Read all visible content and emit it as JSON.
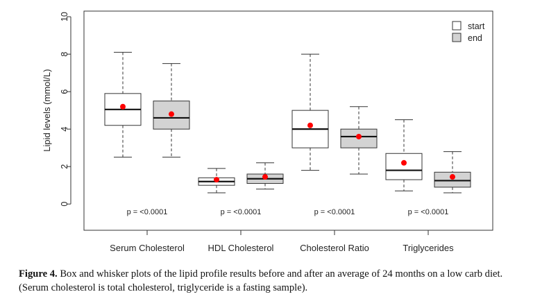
{
  "chart_data": {
    "type": "boxplot",
    "ylabel": "Lipid levels (mmol/L)",
    "ylim": [
      -1.4,
      10.3
    ],
    "yticks": [
      0,
      2,
      4,
      6,
      8,
      10
    ],
    "categories": [
      "Serum Cholesterol",
      "HDL Cholesterol",
      "Cholesterol Ratio",
      "Triglycerides"
    ],
    "legend": {
      "position": "top-right",
      "entries": [
        {
          "label": "start",
          "fill": "#ffffff"
        },
        {
          "label": "end",
          "fill": "#d3d3d3"
        }
      ]
    },
    "groups": [
      {
        "category": "Serum Cholesterol",
        "pvalue": "p = <0.0001",
        "boxes": [
          {
            "series": "start",
            "min": 2.5,
            "q1": 4.2,
            "median": 5.05,
            "q3": 5.9,
            "max": 8.1,
            "mean": 5.2
          },
          {
            "series": "end",
            "min": 2.5,
            "q1": 4.0,
            "median": 4.6,
            "q3": 5.5,
            "max": 7.5,
            "mean": 4.8
          }
        ]
      },
      {
        "category": "HDL Cholesterol",
        "pvalue": "p = <0.0001",
        "boxes": [
          {
            "series": "start",
            "min": 0.6,
            "q1": 1.0,
            "median": 1.2,
            "q3": 1.4,
            "max": 1.9,
            "mean": 1.3
          },
          {
            "series": "end",
            "min": 0.8,
            "q1": 1.1,
            "median": 1.35,
            "q3": 1.6,
            "max": 2.2,
            "mean": 1.45
          }
        ]
      },
      {
        "category": "Cholesterol Ratio",
        "pvalue": "p = <0.0001",
        "boxes": [
          {
            "series": "start",
            "min": 1.8,
            "q1": 3.0,
            "median": 4.0,
            "q3": 5.0,
            "max": 8.0,
            "mean": 4.2
          },
          {
            "series": "end",
            "min": 1.6,
            "q1": 3.0,
            "median": 3.6,
            "q3": 4.0,
            "max": 5.2,
            "mean": 3.6
          }
        ]
      },
      {
        "category": "Triglycerides",
        "pvalue": "p = <0.0001",
        "boxes": [
          {
            "series": "start",
            "min": 0.7,
            "q1": 1.3,
            "median": 1.8,
            "q3": 2.7,
            "max": 4.5,
            "mean": 2.2
          },
          {
            "series": "end",
            "min": 0.6,
            "q1": 0.9,
            "median": 1.25,
            "q3": 1.7,
            "max": 2.8,
            "mean": 1.45
          }
        ]
      }
    ],
    "mean_color": "#ff0000"
  },
  "caption": {
    "label": "Figure 4.",
    "text": " Box and whisker plots of the lipid profile results before and after an average of 24 months on a low carb diet. (Serum cholesterol is total cholesterol, triglyceride is a fasting sample)."
  }
}
